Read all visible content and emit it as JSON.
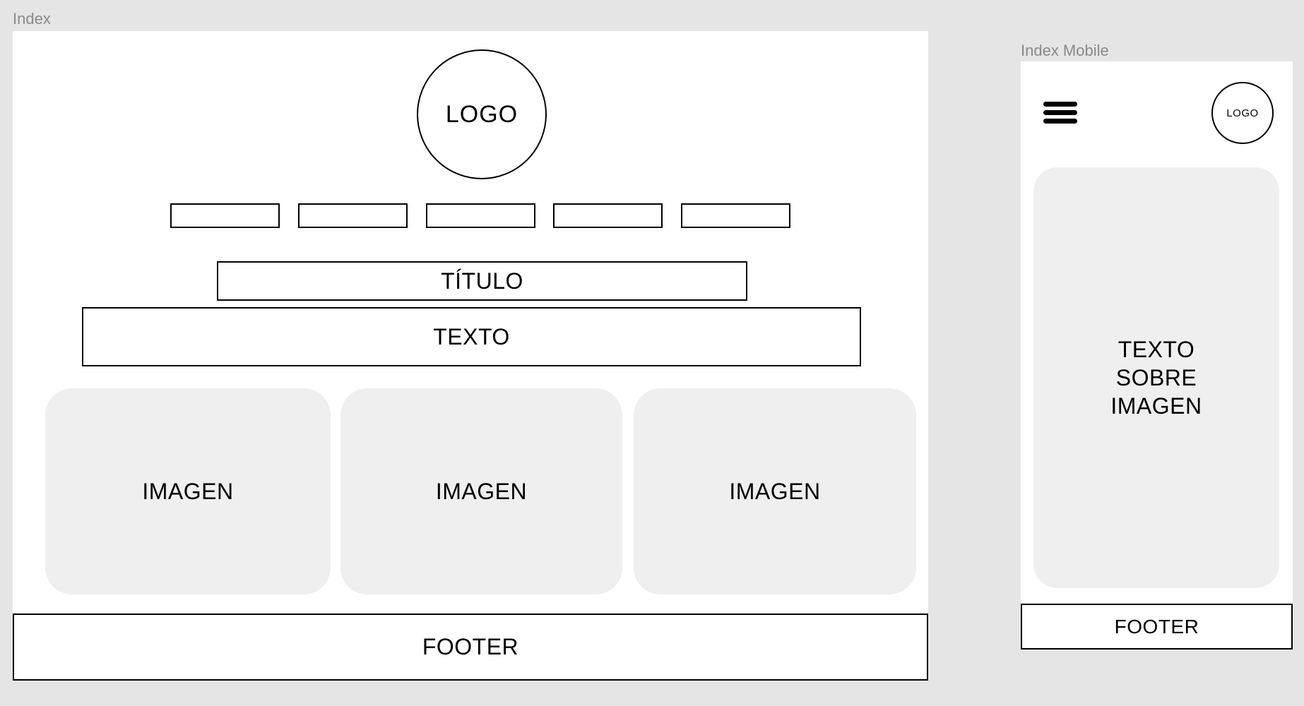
{
  "desktop": {
    "frame_label": "Index",
    "logo": "LOGO",
    "nav_items": [
      "",
      "",
      "",
      "",
      ""
    ],
    "title": "TÍTULO",
    "text": "TEXTO",
    "images": [
      "IMAGEN",
      "IMAGEN",
      "IMAGEN"
    ],
    "footer": "FOOTER"
  },
  "mobile": {
    "frame_label": "Index Mobile",
    "menu_icon": "hamburger-menu-icon",
    "logo": "LOGO",
    "hero_text": "TEXTO\nSOBRE\nIMAGEN",
    "footer": "FOOTER"
  },
  "colors": {
    "canvas": "#e5e5e5",
    "frame": "#ffffff",
    "placeholder": "#efefef",
    "label": "#8a8a8a",
    "stroke": "#000000"
  }
}
